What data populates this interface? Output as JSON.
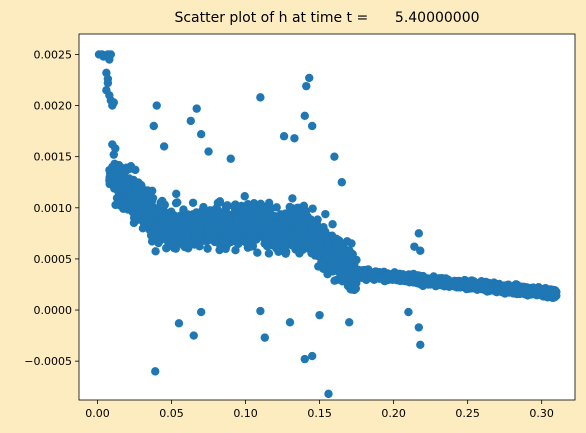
{
  "chart_data": {
    "type": "scatter",
    "title": "Scatter plot of h at time t =      5.40000000",
    "xlabel": "",
    "ylabel": "",
    "xlim": [
      -0.0125,
      0.3225
    ],
    "ylim": [
      -0.00088,
      0.0027
    ],
    "xticks": [
      0.0,
      0.05,
      0.1,
      0.15,
      0.2,
      0.25,
      0.3
    ],
    "xtick_labels": [
      "0.00",
      "0.05",
      "0.10",
      "0.15",
      "0.20",
      "0.25",
      "0.30"
    ],
    "yticks": [
      -0.0005,
      0.0,
      0.0005,
      0.001,
      0.0015,
      0.002,
      0.0025
    ],
    "ytick_labels": [
      "−0.0005",
      "0.0000",
      "0.0005",
      "0.0010",
      "0.0015",
      "0.0020",
      "0.0025"
    ],
    "grid": false,
    "legend": "none",
    "background_color": "#fdecc0",
    "marker_color": "#1f77b4",
    "series": [
      {
        "points": [
          [
            0.001,
            0.0025
          ],
          [
            0.003,
            0.0025
          ],
          [
            0.005,
            0.00249
          ],
          [
            0.007,
            0.0025
          ],
          [
            0.009,
            0.0025
          ],
          [
            0.004,
            0.00248
          ],
          [
            0.008,
            0.00245
          ],
          [
            0.006,
            0.00232
          ],
          [
            0.007,
            0.00226
          ],
          [
            0.007,
            0.00222
          ],
          [
            0.006,
            0.00215
          ],
          [
            0.008,
            0.0021
          ],
          [
            0.009,
            0.00205
          ],
          [
            0.01,
            0.002
          ],
          [
            0.011,
            0.00203
          ],
          [
            0.01,
            0.00162
          ],
          [
            0.012,
            0.00158
          ],
          [
            0.011,
            0.00152
          ],
          [
            0.01,
            0.0014
          ],
          [
            0.013,
            0.00136
          ],
          [
            0.015,
            0.0013
          ],
          [
            0.018,
            0.00125
          ],
          [
            0.02,
            0.00118
          ],
          [
            0.023,
            0.00112
          ],
          [
            0.026,
            0.00108
          ],
          [
            0.03,
            0.00102
          ],
          [
            0.034,
            0.00098
          ],
          [
            0.038,
            0.00095
          ],
          [
            0.042,
            0.00092
          ],
          [
            0.046,
            0.0009
          ],
          [
            0.05,
            0.00088
          ],
          [
            0.055,
            0.00086
          ],
          [
            0.06,
            0.00085
          ],
          [
            0.065,
            0.00084
          ],
          [
            0.07,
            0.00083
          ],
          [
            0.075,
            0.00082
          ],
          [
            0.08,
            0.00081
          ],
          [
            0.085,
            0.0008
          ],
          [
            0.09,
            0.0008
          ],
          [
            0.095,
            0.00079
          ],
          [
            0.1,
            0.00079
          ],
          [
            0.105,
            0.00078
          ],
          [
            0.11,
            0.00078
          ],
          [
            0.115,
            0.00077
          ],
          [
            0.12,
            0.00077
          ],
          [
            0.125,
            0.00076
          ],
          [
            0.13,
            0.00075
          ],
          [
            0.135,
            0.00074
          ],
          [
            0.14,
            0.00072
          ],
          [
            0.145,
            0.0007
          ],
          [
            0.15,
            0.00066
          ],
          [
            0.155,
            0.0006
          ],
          [
            0.16,
            0.00054
          ],
          [
            0.165,
            0.00046
          ],
          [
            0.17,
            0.0004
          ],
          [
            0.175,
            0.00036
          ],
          [
            0.18,
            0.00034
          ],
          [
            0.185,
            0.00032
          ],
          [
            0.19,
            0.00031
          ],
          [
            0.195,
            0.0003
          ],
          [
            0.2,
            0.0003
          ],
          [
            0.205,
            0.00029
          ],
          [
            0.21,
            0.00028
          ],
          [
            0.215,
            0.00027
          ],
          [
            0.22,
            0.00026
          ],
          [
            0.225,
            0.00025
          ],
          [
            0.23,
            0.00025
          ],
          [
            0.235,
            0.00024
          ],
          [
            0.24,
            0.00024
          ],
          [
            0.245,
            0.00023
          ],
          [
            0.25,
            0.00023
          ],
          [
            0.255,
            0.00022
          ],
          [
            0.26,
            0.00022
          ],
          [
            0.265,
            0.00021
          ],
          [
            0.27,
            0.00021
          ],
          [
            0.275,
            0.0002
          ],
          [
            0.28,
            0.0002
          ],
          [
            0.285,
            0.00019
          ],
          [
            0.29,
            0.00018
          ],
          [
            0.295,
            0.00018
          ],
          [
            0.3,
            0.00017
          ],
          [
            0.305,
            0.00017
          ],
          [
            0.308,
            0.00016
          ],
          [
            0.04,
            0.002
          ],
          [
            0.038,
            0.0018
          ],
          [
            0.045,
            0.0016
          ],
          [
            0.067,
            0.00197
          ],
          [
            0.063,
            0.00185
          ],
          [
            0.07,
            0.00172
          ],
          [
            0.075,
            0.00155
          ],
          [
            0.09,
            0.00148
          ],
          [
            0.11,
            0.00208
          ],
          [
            0.126,
            0.0017
          ],
          [
            0.133,
            0.00168
          ],
          [
            0.143,
            0.00227
          ],
          [
            0.141,
            0.00219
          ],
          [
            0.14,
            0.0019
          ],
          [
            0.145,
            0.0018
          ],
          [
            0.16,
            0.0015
          ],
          [
            0.165,
            0.00125
          ],
          [
            0.217,
            0.00075
          ],
          [
            0.214,
            0.00062
          ],
          [
            0.218,
            0.00058
          ],
          [
            0.039,
            -0.0006
          ],
          [
            0.065,
            -0.00025
          ],
          [
            0.113,
            -0.00027
          ],
          [
            0.145,
            -0.00045
          ],
          [
            0.14,
            -0.00048
          ],
          [
            0.156,
            -0.00082
          ],
          [
            0.218,
            -0.00034
          ],
          [
            0.217,
            -0.00017
          ],
          [
            0.13,
            -0.00012
          ],
          [
            0.11,
            -1e-05
          ],
          [
            0.15,
            -5e-05
          ],
          [
            0.17,
            -0.00012
          ],
          [
            0.21,
            -2e-05
          ],
          [
            0.055,
            -0.00013
          ],
          [
            0.07,
            -2e-05
          ]
        ]
      }
    ]
  }
}
